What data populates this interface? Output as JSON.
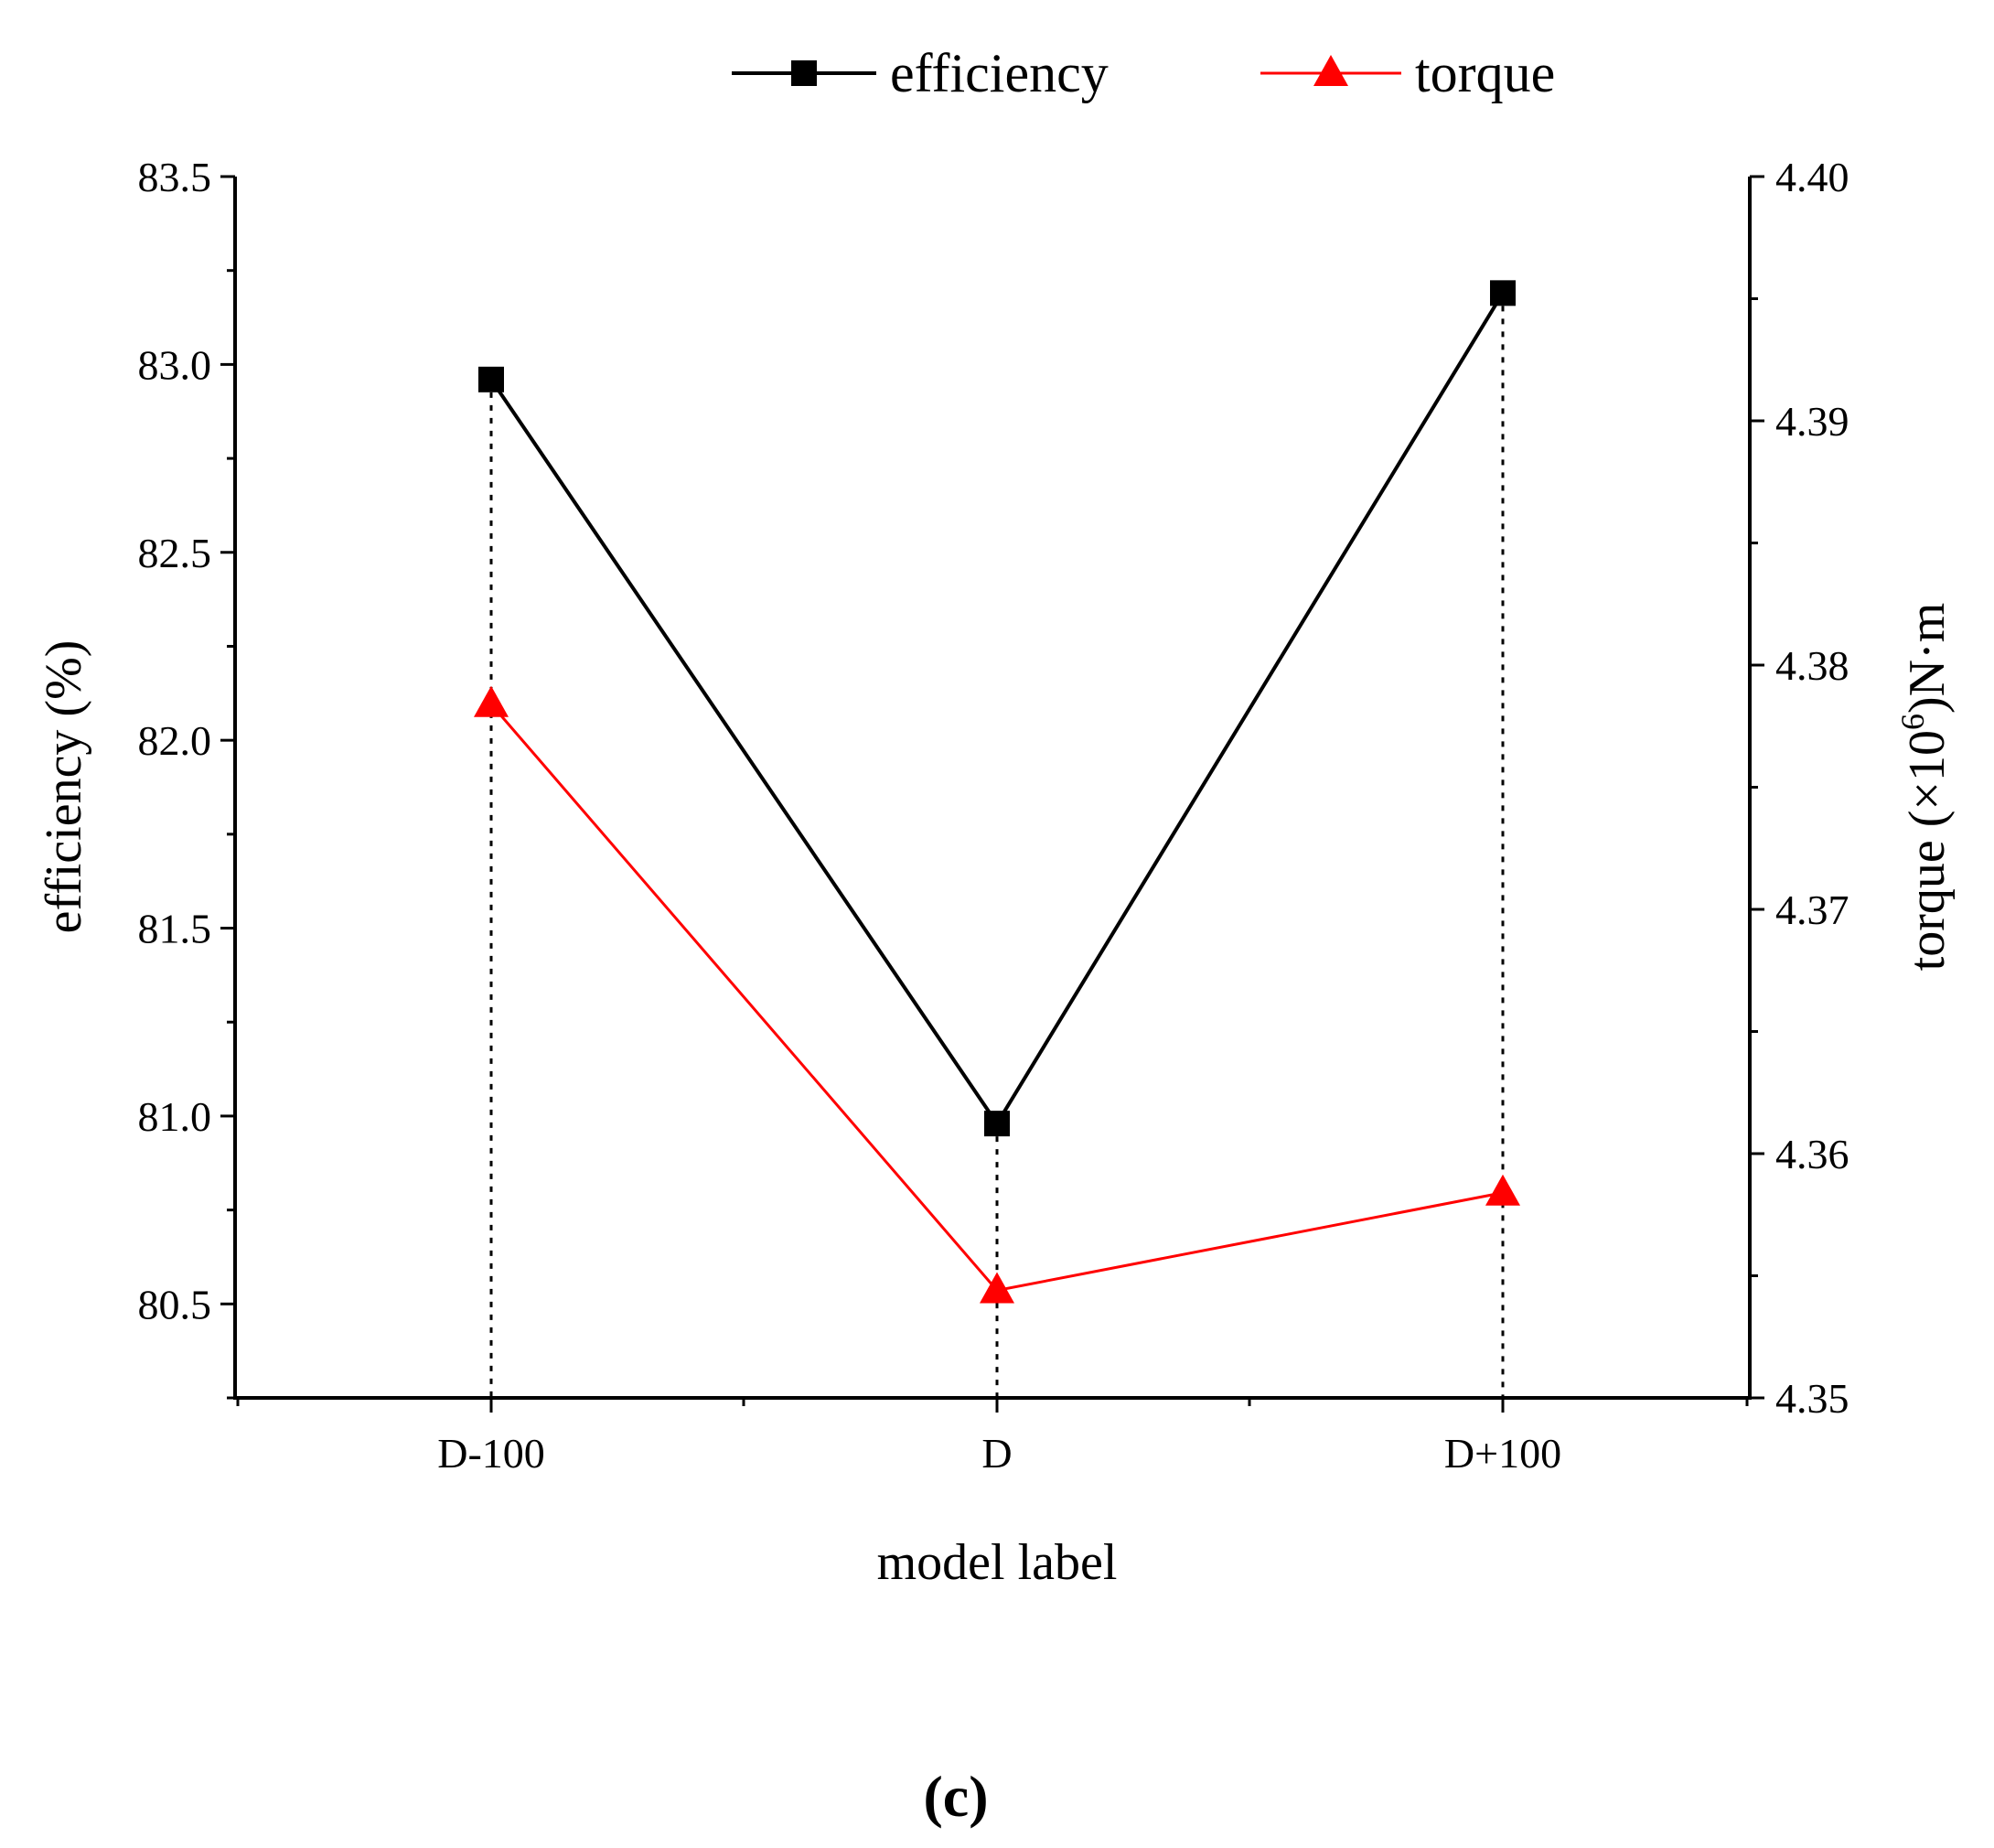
{
  "chart_data": {
    "type": "line",
    "categories": [
      "D-100",
      "D",
      "D+100"
    ],
    "xlabel": "model label",
    "series": [
      {
        "name": "efficiency",
        "axis": "left",
        "values": [
          82.96,
          80.98,
          83.19
        ],
        "color": "#000000",
        "marker": "square"
      },
      {
        "name": "torque",
        "axis": "right",
        "values": [
          4.3784,
          4.3544,
          4.3584
        ],
        "color": "#ff0000",
        "marker": "triangle"
      }
    ],
    "y_left": {
      "label": "efficiency (%)",
      "lim": [
        80.25,
        83.5
      ],
      "ticks": [
        80.5,
        81.0,
        81.5,
        82.0,
        82.5,
        83.0,
        83.5
      ],
      "tick_labels": [
        "80.5",
        "81.0",
        "81.5",
        "82.0",
        "82.5",
        "83.0",
        "83.5"
      ]
    },
    "y_right": {
      "label_parts": [
        "torque (×10",
        "6",
        ")N·m"
      ],
      "lim": [
        4.35,
        4.4
      ],
      "ticks": [
        4.35,
        4.36,
        4.37,
        4.38,
        4.39,
        4.4
      ],
      "tick_labels": [
        "4.35",
        "4.36",
        "4.37",
        "4.38",
        "4.39",
        "4.40"
      ]
    },
    "legend": {
      "position": "top-center",
      "entries": [
        "efficiency",
        "torque"
      ]
    },
    "drop_lines": true,
    "grid": false
  },
  "panel_label": "(c)"
}
